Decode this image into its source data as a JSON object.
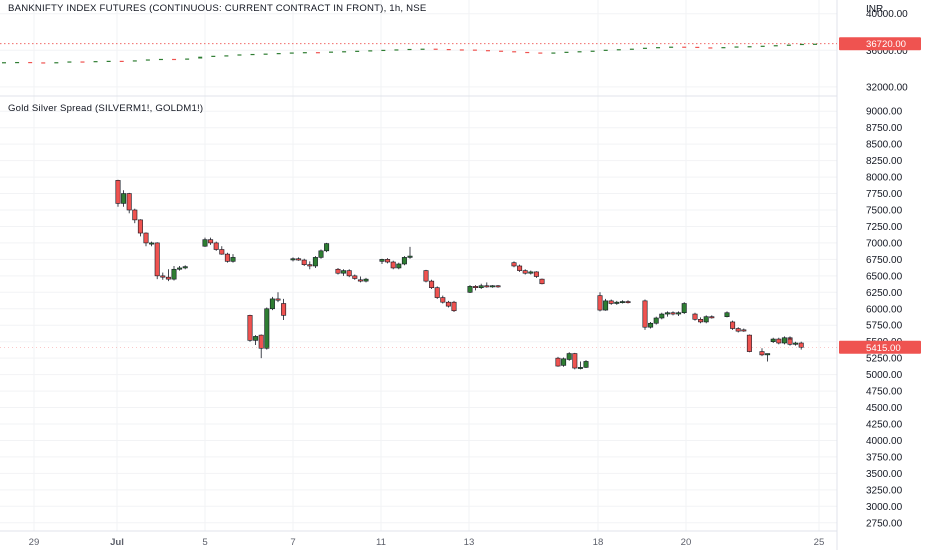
{
  "colors": {
    "up": "#2e7d32",
    "down": "#ef5350",
    "grid": "#f2f3f5",
    "divider": "#e0e3eb",
    "price_tag": "#ef5350"
  },
  "chart_data": [
    {
      "type": "candlestick",
      "title": "BANKNIFTY INDEX FUTURES (CONTINUOUS: CURRENT CONTRACT IN FRONT), 1h, NSE",
      "currency_label": "INR",
      "y_ticks": [
        "40000.00",
        "36000.00",
        "32000.00"
      ],
      "ylim": [
        31000,
        41500
      ],
      "last_price": 36720,
      "last_price_label": "36720.00",
      "close_series": [
        34700,
        34720,
        34680,
        34650,
        34700,
        34780,
        34760,
        34820,
        34850,
        34820,
        34900,
        35000,
        35060,
        35020,
        35100,
        35300,
        35400,
        35450,
        35550,
        35600,
        35640,
        35700,
        35760,
        35800,
        35780,
        35860,
        35900,
        35950,
        36000,
        36050,
        36100,
        36150,
        36180,
        36140,
        36100,
        36080,
        36020,
        35960,
        35900,
        35820,
        35760,
        35700,
        35760,
        35840,
        35900,
        35960,
        36060,
        36120,
        36180,
        36280,
        36350,
        36400,
        36380,
        36320,
        36300,
        36350,
        36420,
        36450,
        36500,
        36560,
        36620,
        36700,
        36720
      ]
    },
    {
      "type": "candlestick",
      "title": "Gold Silver Spread (SILVERM1!, GOLDM1!)",
      "y_ticks": [
        "9000.00",
        "8750.00",
        "8500.00",
        "8250.00",
        "8000.00",
        "7750.00",
        "7500.00",
        "7250.00",
        "7000.00",
        "6750.00",
        "6500.00",
        "6250.00",
        "6000.00",
        "5750.00",
        "5500.00",
        "5250.00",
        "5000.00",
        "4750.00",
        "4500.00",
        "4250.00",
        "4000.00",
        "3750.00",
        "3500.00",
        "3250.00",
        "3000.00",
        "2750.00"
      ],
      "ylim": [
        2625,
        9125
      ],
      "last_price": 5415,
      "last_price_label": "5415.00",
      "x_labels": [
        "29",
        "Jul",
        "5",
        "7",
        "11",
        "13",
        "18",
        "20",
        "25"
      ],
      "candles": [
        {
          "o": 7950,
          "h": 7960,
          "l": 7550,
          "c": 7600
        },
        {
          "o": 7600,
          "h": 7800,
          "l": 7550,
          "c": 7750
        },
        {
          "o": 7750,
          "h": 7760,
          "l": 7450,
          "c": 7500
        },
        {
          "o": 7500,
          "h": 7520,
          "l": 7300,
          "c": 7350
        },
        {
          "o": 7350,
          "h": 7360,
          "l": 7100,
          "c": 7150
        },
        {
          "o": 7150,
          "h": 7160,
          "l": 6950,
          "c": 7000
        },
        {
          "o": 7000,
          "h": 7020,
          "l": 6950,
          "c": 7000
        },
        {
          "o": 7000,
          "h": 7010,
          "l": 6450,
          "c": 6500
        },
        {
          "o": 6500,
          "h": 6550,
          "l": 6440,
          "c": 6480
        },
        {
          "o": 6480,
          "h": 6600,
          "l": 6420,
          "c": 6450
        },
        {
          "o": 6450,
          "h": 6650,
          "l": 6430,
          "c": 6600
        },
        {
          "o": 6600,
          "h": 6650,
          "l": 6580,
          "c": 6620
        },
        {
          "o": 6620,
          "h": 6660,
          "l": 6600,
          "c": 6640
        },
        {
          "o": 6950,
          "h": 7080,
          "l": 6940,
          "c": 7050
        },
        {
          "o": 7050,
          "h": 7080,
          "l": 6970,
          "c": 7000
        },
        {
          "o": 7000,
          "h": 7020,
          "l": 6880,
          "c": 6900
        },
        {
          "o": 6900,
          "h": 6950,
          "l": 6820,
          "c": 6830
        },
        {
          "o": 6830,
          "h": 6850,
          "l": 6700,
          "c": 6720
        },
        {
          "o": 6720,
          "h": 6830,
          "l": 6700,
          "c": 6780
        },
        {
          "o": 5900,
          "h": 5910,
          "l": 5500,
          "c": 5520
        },
        {
          "o": 5520,
          "h": 5600,
          "l": 5450,
          "c": 5580
        },
        {
          "o": 5600,
          "h": 5610,
          "l": 5250,
          "c": 5400
        },
        {
          "o": 5400,
          "h": 6020,
          "l": 5380,
          "c": 6000
        },
        {
          "o": 6000,
          "h": 6180,
          "l": 5980,
          "c": 6150
        },
        {
          "o": 6150,
          "h": 6250,
          "l": 6100,
          "c": 6130
        },
        {
          "o": 6080,
          "h": 6150,
          "l": 5830,
          "c": 5900
        },
        {
          "o": 6750,
          "h": 6780,
          "l": 6720,
          "c": 6760
        },
        {
          "o": 6760,
          "h": 6780,
          "l": 6730,
          "c": 6740
        },
        {
          "o": 6740,
          "h": 6760,
          "l": 6650,
          "c": 6670
        },
        {
          "o": 6670,
          "h": 6720,
          "l": 6600,
          "c": 6650
        },
        {
          "o": 6650,
          "h": 6800,
          "l": 6620,
          "c": 6780
        },
        {
          "o": 6780,
          "h": 6900,
          "l": 6760,
          "c": 6880
        },
        {
          "o": 6880,
          "h": 7000,
          "l": 6860,
          "c": 6990
        },
        {
          "o": 6600,
          "h": 6620,
          "l": 6520,
          "c": 6540
        },
        {
          "o": 6540,
          "h": 6600,
          "l": 6500,
          "c": 6580
        },
        {
          "o": 6580,
          "h": 6600,
          "l": 6480,
          "c": 6500
        },
        {
          "o": 6500,
          "h": 6520,
          "l": 6440,
          "c": 6460
        },
        {
          "o": 6440,
          "h": 6490,
          "l": 6400,
          "c": 6420
        },
        {
          "o": 6420,
          "h": 6470,
          "l": 6400,
          "c": 6450
        },
        {
          "o": 6720,
          "h": 6760,
          "l": 6680,
          "c": 6750
        },
        {
          "o": 6750,
          "h": 6770,
          "l": 6690,
          "c": 6710
        },
        {
          "o": 6710,
          "h": 6730,
          "l": 6600,
          "c": 6620
        },
        {
          "o": 6620,
          "h": 6700,
          "l": 6600,
          "c": 6680
        },
        {
          "o": 6680,
          "h": 6800,
          "l": 6660,
          "c": 6780
        },
        {
          "o": 6780,
          "h": 6940,
          "l": 6760,
          "c": 6800
        },
        {
          "o": 6580,
          "h": 6590,
          "l": 6400,
          "c": 6420
        },
        {
          "o": 6420,
          "h": 6440,
          "l": 6300,
          "c": 6320
        },
        {
          "o": 6320,
          "h": 6340,
          "l": 6150,
          "c": 6170
        },
        {
          "o": 6170,
          "h": 6200,
          "l": 6080,
          "c": 6100
        },
        {
          "o": 6100,
          "h": 6120,
          "l": 6020,
          "c": 6040
        },
        {
          "o": 6100,
          "h": 6120,
          "l": 5950,
          "c": 5970
        },
        {
          "o": 6250,
          "h": 6360,
          "l": 6240,
          "c": 6340
        },
        {
          "o": 6340,
          "h": 6360,
          "l": 6280,
          "c": 6320
        },
        {
          "o": 6320,
          "h": 6380,
          "l": 6300,
          "c": 6350
        },
        {
          "o": 6350,
          "h": 6400,
          "l": 6320,
          "c": 6340
        },
        {
          "o": 6340,
          "h": 6360,
          "l": 6320,
          "c": 6350
        },
        {
          "o": 6350,
          "h": 6360,
          "l": 6320,
          "c": 6340
        },
        {
          "o": 6700,
          "h": 6720,
          "l": 6630,
          "c": 6650
        },
        {
          "o": 6650,
          "h": 6670,
          "l": 6560,
          "c": 6580
        },
        {
          "o": 6580,
          "h": 6600,
          "l": 6520,
          "c": 6540
        },
        {
          "o": 6540,
          "h": 6580,
          "l": 6520,
          "c": 6560
        },
        {
          "o": 6560,
          "h": 6570,
          "l": 6470,
          "c": 6490
        },
        {
          "o": 6450,
          "h": 6460,
          "l": 6370,
          "c": 6380
        },
        {
          "o": 5250,
          "h": 5270,
          "l": 5120,
          "c": 5130
        },
        {
          "o": 5140,
          "h": 5260,
          "l": 5120,
          "c": 5240
        },
        {
          "o": 5230,
          "h": 5340,
          "l": 5210,
          "c": 5320
        },
        {
          "o": 5320,
          "h": 5330,
          "l": 5080,
          "c": 5100
        },
        {
          "o": 5100,
          "h": 5200,
          "l": 5080,
          "c": 5110
        },
        {
          "o": 5110,
          "h": 5220,
          "l": 5100,
          "c": 5200
        },
        {
          "o": 6200,
          "h": 6250,
          "l": 5960,
          "c": 5980
        },
        {
          "o": 5980,
          "h": 6150,
          "l": 5970,
          "c": 6120
        },
        {
          "o": 6120,
          "h": 6140,
          "l": 6060,
          "c": 6080
        },
        {
          "o": 6080,
          "h": 6120,
          "l": 6060,
          "c": 6100
        },
        {
          "o": 6100,
          "h": 6130,
          "l": 6080,
          "c": 6110
        },
        {
          "o": 6110,
          "h": 6130,
          "l": 6080,
          "c": 6100
        },
        {
          "o": 6120,
          "h": 6140,
          "l": 5680,
          "c": 5720
        },
        {
          "o": 5720,
          "h": 5800,
          "l": 5700,
          "c": 5780
        },
        {
          "o": 5780,
          "h": 5880,
          "l": 5760,
          "c": 5860
        },
        {
          "o": 5860,
          "h": 5940,
          "l": 5840,
          "c": 5920
        },
        {
          "o": 5920,
          "h": 5960,
          "l": 5880,
          "c": 5940
        },
        {
          "o": 5940,
          "h": 5960,
          "l": 5900,
          "c": 5920
        },
        {
          "o": 5920,
          "h": 5960,
          "l": 5890,
          "c": 5940
        },
        {
          "o": 5940,
          "h": 6100,
          "l": 5920,
          "c": 6080
        },
        {
          "o": 5920,
          "h": 5940,
          "l": 5820,
          "c": 5840
        },
        {
          "o": 5840,
          "h": 5870,
          "l": 5780,
          "c": 5800
        },
        {
          "o": 5800,
          "h": 5900,
          "l": 5780,
          "c": 5880
        },
        {
          "o": 5880,
          "h": 5900,
          "l": 5850,
          "c": 5870
        },
        {
          "o": 5880,
          "h": 5960,
          "l": 5870,
          "c": 5940
        },
        {
          "o": 5800,
          "h": 5820,
          "l": 5680,
          "c": 5700
        },
        {
          "o": 5700,
          "h": 5720,
          "l": 5640,
          "c": 5660
        },
        {
          "o": 5680,
          "h": 5700,
          "l": 5650,
          "c": 5670
        },
        {
          "o": 5600,
          "h": 5610,
          "l": 5340,
          "c": 5350
        },
        {
          "o": 5350,
          "h": 5400,
          "l": 5280,
          "c": 5300
        },
        {
          "o": 5300,
          "h": 5320,
          "l": 5200,
          "c": 5320
        },
        {
          "o": 5500,
          "h": 5560,
          "l": 5480,
          "c": 5540
        },
        {
          "o": 5540,
          "h": 5560,
          "l": 5460,
          "c": 5480
        },
        {
          "o": 5480,
          "h": 5580,
          "l": 5460,
          "c": 5560
        },
        {
          "o": 5560,
          "h": 5580,
          "l": 5520,
          "c": 5540
        },
        {
          "o": 5540,
          "h": 5560,
          "l": 5440,
          "c": 5460
        },
        {
          "o": 5460,
          "h": 5500,
          "l": 5440,
          "c": 5480
        },
        {
          "o": 5480,
          "h": 5500,
          "l": 5380,
          "c": 5415
        }
      ]
    }
  ]
}
